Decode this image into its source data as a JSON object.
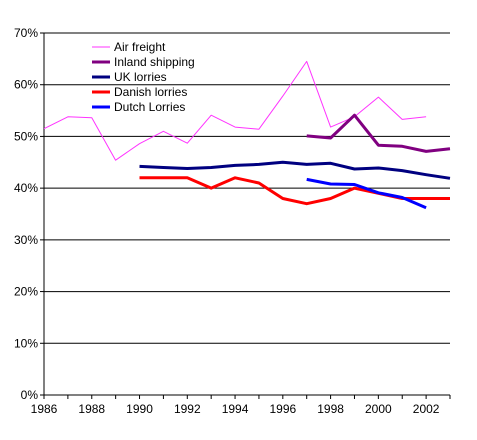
{
  "chart_data": {
    "type": "line",
    "title": "",
    "xlabel": "",
    "ylabel": "",
    "xlim": [
      1986,
      2003
    ],
    "ylim": [
      0,
      70
    ],
    "y_ticks": [
      "0%",
      "10%",
      "20%",
      "30%",
      "40%",
      "50%",
      "60%",
      "70%"
    ],
    "x_ticks": [
      "1986",
      "1988",
      "1990",
      "1992",
      "1994",
      "1996",
      "1998",
      "2000",
      "2002"
    ],
    "grid": "horizontal",
    "legend": "top-left",
    "series": [
      {
        "name": "Air freight",
        "color": "#ff33ff",
        "line_weight": "thin",
        "x": [
          1986,
          1987,
          1988,
          1989,
          1990,
          1991,
          1992,
          1993,
          1994,
          1995,
          1996,
          1997,
          1998,
          1999,
          2000,
          2001,
          2002
        ],
        "values": [
          51.5,
          53.8,
          53.6,
          45.4,
          48.6,
          51.0,
          48.7,
          54.1,
          51.8,
          51.4,
          57.8,
          64.5,
          51.8,
          53.8,
          57.6,
          53.3,
          53.8
        ]
      },
      {
        "name": "Inland shipping",
        "color": "#800080",
        "line_weight": "thick",
        "x": [
          1997,
          1998,
          1999,
          2000,
          2001,
          2002,
          2003
        ],
        "values": [
          50.1,
          49.7,
          54.1,
          48.3,
          48.1,
          47.1,
          47.6
        ]
      },
      {
        "name": "UK lorries",
        "color": "#000080",
        "line_weight": "thick",
        "x": [
          1990,
          1991,
          1992,
          1993,
          1994,
          1995,
          1996,
          1997,
          1998,
          1999,
          2000,
          2001,
          2002,
          2003
        ],
        "values": [
          44.2,
          44.0,
          43.8,
          44.0,
          44.4,
          44.6,
          45.0,
          44.6,
          44.8,
          43.7,
          43.9,
          43.4,
          42.6,
          41.9
        ]
      },
      {
        "name": "Danish lorries",
        "color": "#ff0000",
        "line_weight": "thick",
        "x": [
          1990,
          1991,
          1992,
          1993,
          1994,
          1995,
          1996,
          1997,
          1998,
          1999,
          2000,
          2001,
          2002,
          2003
        ],
        "values": [
          42.0,
          42.0,
          42.0,
          40.0,
          42.0,
          41.0,
          38.0,
          37.0,
          38.0,
          40.0,
          39.0,
          38.0,
          38.0,
          38.0
        ]
      },
      {
        "name": "Dutch Lorries",
        "color": "#0000ff",
        "line_weight": "thick",
        "x": [
          1997,
          1998,
          1999,
          2000,
          2001,
          2002
        ],
        "values": [
          41.7,
          40.8,
          40.7,
          39.1,
          38.2,
          36.2
        ]
      }
    ]
  }
}
